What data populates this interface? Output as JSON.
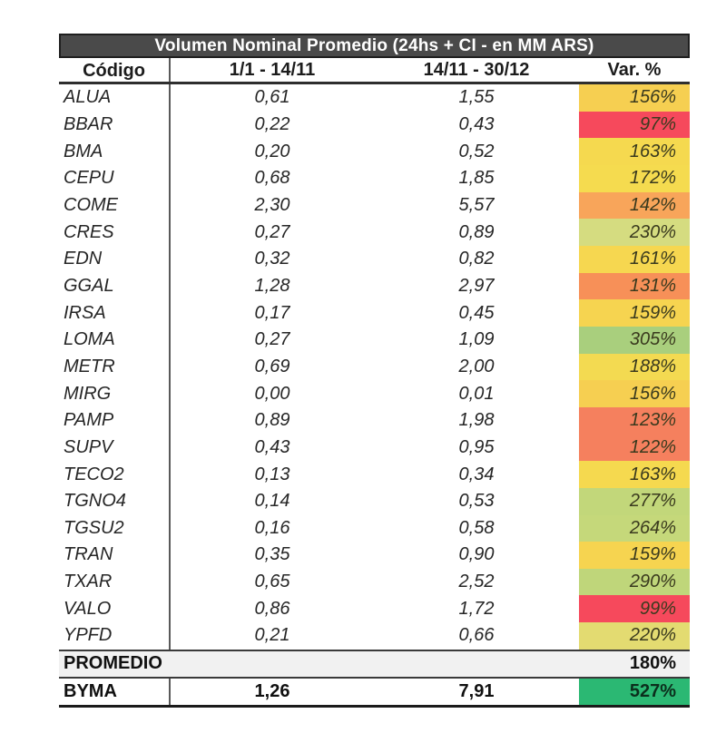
{
  "chart_data": {
    "type": "table",
    "title": "Volumen Nominal Promedio (24hs + CI - en MM ARS)",
    "columns": [
      "Código",
      "1/1 - 14/11",
      "14/11 - 30/12",
      "Var. %"
    ],
    "rows": [
      {
        "code": "ALUA",
        "v1": "0,61",
        "v2": "1,55",
        "var_pct": "156%",
        "color": "#F6CF51"
      },
      {
        "code": "BBAR",
        "v1": "0,22",
        "v2": "0,43",
        "var_pct": "97%",
        "color": "#F6495C"
      },
      {
        "code": "BMA",
        "v1": "0,20",
        "v2": "0,52",
        "var_pct": "163%",
        "color": "#F5D94F"
      },
      {
        "code": "CEPU",
        "v1": "0,68",
        "v2": "1,85",
        "var_pct": "172%",
        "color": "#F5DB4F"
      },
      {
        "code": "COME",
        "v1": "2,30",
        "v2": "5,57",
        "var_pct": "142%",
        "color": "#F8A55A"
      },
      {
        "code": "CRES",
        "v1": "0,27",
        "v2": "0,89",
        "var_pct": "230%",
        "color": "#D5DC80"
      },
      {
        "code": "EDN",
        "v1": "0,32",
        "v2": "0,82",
        "var_pct": "161%",
        "color": "#F6D750"
      },
      {
        "code": "GGAL",
        "v1": "1,28",
        "v2": "2,97",
        "var_pct": "131%",
        "color": "#F79058"
      },
      {
        "code": "IRSA",
        "v1": "0,17",
        "v2": "0,45",
        "var_pct": "159%",
        "color": "#F6D450"
      },
      {
        "code": "LOMA",
        "v1": "0,27",
        "v2": "1,09",
        "var_pct": "305%",
        "color": "#A9CF7D"
      },
      {
        "code": "METR",
        "v1": "0,69",
        "v2": "2,00",
        "var_pct": "188%",
        "color": "#F3DA51"
      },
      {
        "code": "MIRG",
        "v1": "0,00",
        "v2": "0,01",
        "var_pct": "156%",
        "color": "#F6CF51"
      },
      {
        "code": "PAMP",
        "v1": "0,89",
        "v2": "1,98",
        "var_pct": "123%",
        "color": "#F5805E"
      },
      {
        "code": "SUPV",
        "v1": "0,43",
        "v2": "0,95",
        "var_pct": "122%",
        "color": "#F5805E"
      },
      {
        "code": "TECO2",
        "v1": "0,13",
        "v2": "0,34",
        "var_pct": "163%",
        "color": "#F5D94F"
      },
      {
        "code": "TGNO4",
        "v1": "0,14",
        "v2": "0,53",
        "var_pct": "277%",
        "color": "#C2D77A"
      },
      {
        "code": "TGSU2",
        "v1": "0,16",
        "v2": "0,58",
        "var_pct": "264%",
        "color": "#C5D87A"
      },
      {
        "code": "TRAN",
        "v1": "0,35",
        "v2": "0,90",
        "var_pct": "159%",
        "color": "#F6D450"
      },
      {
        "code": "TXAR",
        "v1": "0,65",
        "v2": "2,52",
        "var_pct": "290%",
        "color": "#BFD67A"
      },
      {
        "code": "VALO",
        "v1": "0,86",
        "v2": "1,72",
        "var_pct": "99%",
        "color": "#F6495C"
      },
      {
        "code": "YPFD",
        "v1": "0,21",
        "v2": "0,66",
        "var_pct": "220%",
        "color": "#E3DB71"
      }
    ],
    "summary_rows": {
      "promedio": {
        "label": "PROMEDIO",
        "var_pct": "180%",
        "bg": "#F1F1F1"
      },
      "byma": {
        "code": "BYMA",
        "v1": "1,26",
        "v2": "7,91",
        "var_pct": "527%",
        "color": "#2BB873"
      }
    },
    "layout": {
      "value_alignment": "center",
      "var_alignment": "right",
      "color_scale": [
        "#F6495C",
        "#F5D94F",
        "#2BB873"
      ]
    }
  },
  "colors": {
    "title_bg": "#4A4A4A",
    "title_text": "#FFFFFF",
    "grid_line": "#2E2E2E",
    "promedio_bg": "#F1F1F1",
    "byma_green": "#2BB873",
    "red_min": "#F6495C",
    "yellow_mid": "#F5D94F",
    "green_max": "#2BB873"
  }
}
